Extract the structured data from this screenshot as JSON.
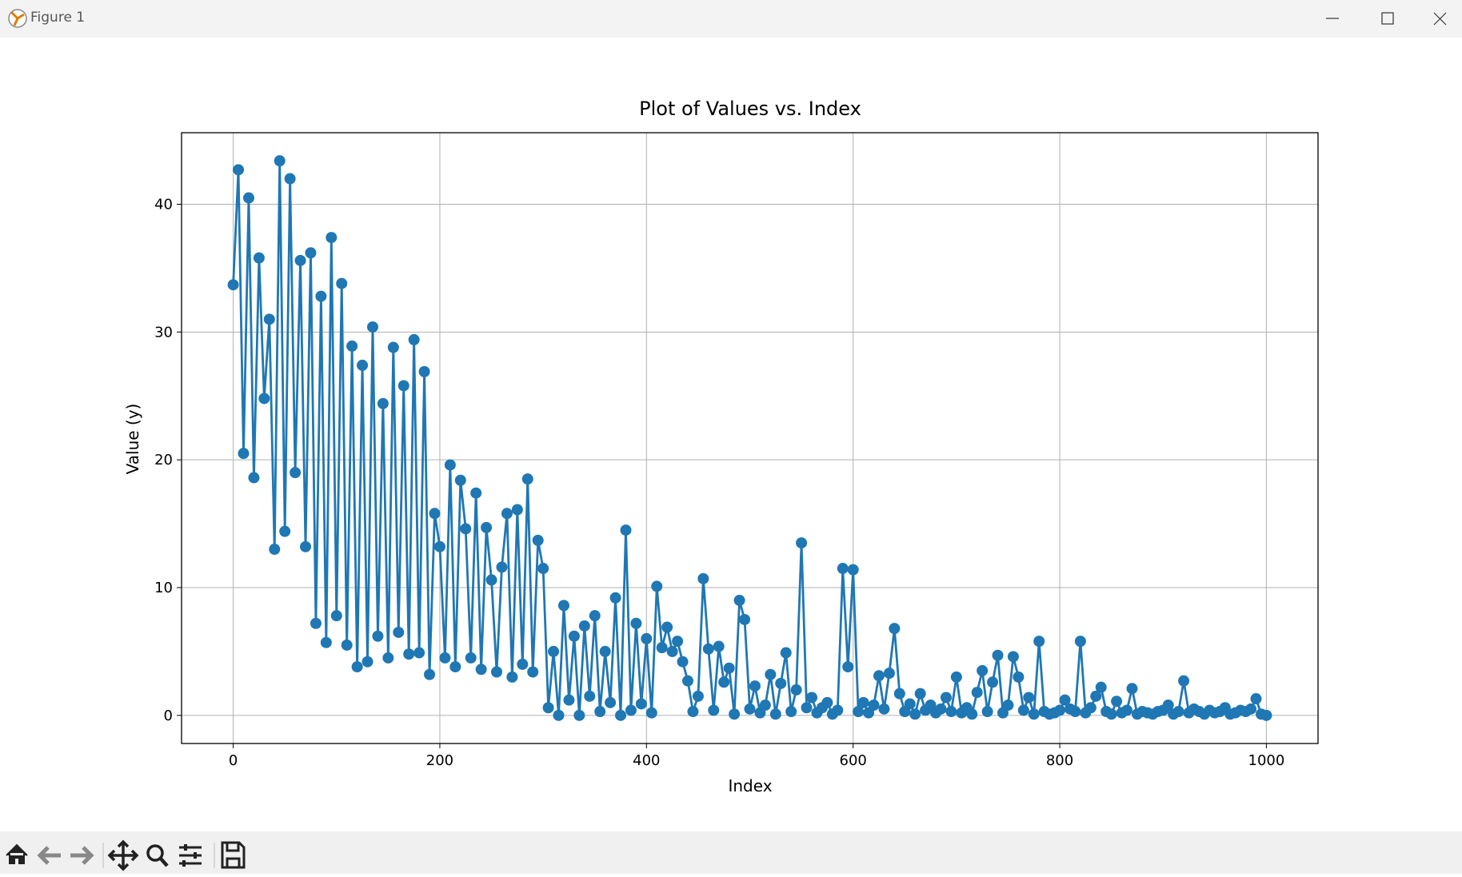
{
  "window_title": "Figure 1",
  "chart_data": {
    "type": "line",
    "title": "Plot of Values vs. Index",
    "x_label": "Index",
    "y_label": "Value (y)",
    "color": "#1f77b4",
    "grid": true,
    "xlim": [
      -50,
      1050
    ],
    "ylim": [
      -2.2,
      45.6
    ],
    "xticks": [
      0,
      200,
      400,
      600,
      800,
      1000
    ],
    "yticks": [
      0,
      10,
      20,
      30,
      40
    ],
    "x": [
      0,
      5,
      10,
      15,
      20,
      25,
      30,
      35,
      40,
      45,
      50,
      55,
      60,
      65,
      70,
      75,
      80,
      85,
      90,
      95,
      100,
      105,
      110,
      115,
      120,
      125,
      130,
      135,
      140,
      145,
      150,
      155,
      160,
      165,
      170,
      175,
      180,
      185,
      190,
      195,
      200,
      205,
      210,
      215,
      220,
      225,
      230,
      235,
      240,
      245,
      250,
      255,
      260,
      265,
      270,
      275,
      280,
      285,
      290,
      295,
      300,
      305,
      310,
      315,
      320,
      325,
      330,
      335,
      340,
      345,
      350,
      355,
      360,
      365,
      370,
      375,
      380,
      385,
      390,
      395,
      400,
      405,
      410,
      415,
      420,
      425,
      430,
      435,
      440,
      445,
      450,
      455,
      460,
      465,
      470,
      475,
      480,
      485,
      490,
      495,
      500,
      505,
      510,
      515,
      520,
      525,
      530,
      535,
      540,
      545,
      550,
      555,
      560,
      565,
      570,
      575,
      580,
      585,
      590,
      595,
      600,
      605,
      610,
      615,
      620,
      625,
      630,
      635,
      640,
      645,
      650,
      655,
      660,
      665,
      670,
      675,
      680,
      685,
      690,
      695,
      700,
      705,
      710,
      715,
      720,
      725,
      730,
      735,
      740,
      745,
      750,
      755,
      760,
      765,
      770,
      775,
      780,
      785,
      790,
      795,
      800,
      805,
      810,
      815,
      820,
      825,
      830,
      835,
      840,
      845,
      850,
      855,
      860,
      865,
      870,
      875,
      880,
      885,
      890,
      895,
      900,
      905,
      910,
      915,
      920,
      925,
      930,
      935,
      940,
      945,
      950,
      955,
      960,
      965,
      970,
      975,
      980,
      985,
      990,
      995,
      1000
    ],
    "values": [
      33.7,
      42.7,
      20.5,
      40.5,
      18.6,
      35.8,
      24.8,
      31.0,
      13.0,
      43.4,
      14.4,
      42.0,
      19.0,
      35.6,
      13.2,
      36.2,
      7.2,
      32.8,
      5.7,
      37.4,
      7.8,
      33.8,
      5.5,
      28.9,
      3.8,
      27.4,
      4.2,
      30.4,
      6.2,
      24.4,
      4.5,
      28.8,
      6.5,
      25.8,
      4.8,
      29.4,
      4.9,
      26.9,
      3.2,
      15.8,
      13.2,
      4.5,
      19.6,
      3.8,
      18.4,
      14.6,
      4.5,
      17.4,
      3.6,
      14.7,
      10.6,
      3.4,
      11.6,
      15.8,
      3.0,
      16.1,
      4.0,
      18.5,
      3.4,
      13.7,
      11.5,
      0.6,
      5.0,
      0.0,
      8.6,
      1.2,
      6.2,
      0.0,
      7.0,
      1.5,
      7.8,
      0.3,
      5.0,
      1.0,
      9.2,
      0.0,
      14.5,
      0.4,
      7.2,
      0.9,
      6.0,
      0.2,
      10.1,
      5.3,
      6.9,
      5.0,
      5.8,
      4.2,
      2.7,
      0.3,
      1.5,
      10.7,
      5.2,
      0.4,
      5.4,
      2.6,
      3.7,
      0.1,
      9.0,
      7.5,
      0.5,
      2.3,
      0.2,
      0.8,
      3.2,
      0.1,
      2.5,
      4.9,
      0.3,
      2.0,
      13.5,
      0.6,
      1.4,
      0.2,
      0.6,
      1.0,
      0.1,
      0.4,
      11.5,
      3.8,
      11.4,
      0.3,
      1.0,
      0.2,
      0.8,
      3.1,
      0.5,
      3.3,
      6.8,
      1.7,
      0.3,
      0.9,
      0.1,
      1.7,
      0.4,
      0.8,
      0.2,
      0.5,
      1.4,
      0.3,
      3.0,
      0.2,
      0.6,
      0.1,
      1.8,
      3.5,
      0.3,
      2.6,
      4.7,
      0.2,
      0.8,
      4.6,
      3.0,
      0.4,
      1.4,
      0.1,
      5.8,
      0.3,
      0.1,
      0.2,
      0.4,
      1.2,
      0.5,
      0.3,
      5.8,
      0.2,
      0.6,
      1.5,
      2.2,
      0.3,
      0.1,
      1.1,
      0.2,
      0.4,
      2.1,
      0.1,
      0.3,
      0.2,
      0.1,
      0.3,
      0.4,
      0.8,
      0.1,
      0.3,
      2.7,
      0.2,
      0.5,
      0.3,
      0.1,
      0.4,
      0.2,
      0.3,
      0.6,
      0.1,
      0.2,
      0.4,
      0.3,
      0.5,
      1.3,
      0.1,
      0.0
    ]
  }
}
